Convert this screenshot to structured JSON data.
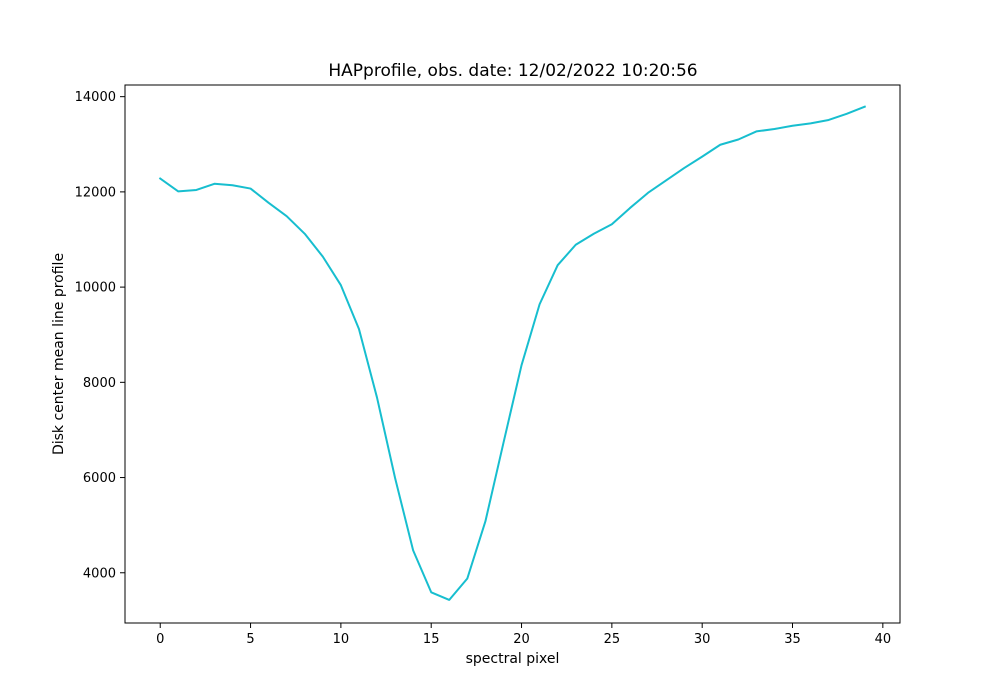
{
  "chart_data": {
    "type": "line",
    "title": "HAPprofile, obs. date: 12/02/2022 10:20:56",
    "xlabel": "spectral pixel",
    "ylabel": "Disk center mean line profile",
    "xlim": [
      -1.95,
      40.95
    ],
    "ylim": [
      2945,
      14245
    ],
    "x_ticks": [
      0,
      5,
      10,
      15,
      20,
      25,
      30,
      35,
      40
    ],
    "y_ticks": [
      4000,
      6000,
      8000,
      10000,
      12000,
      14000
    ],
    "grid": false,
    "legend": "none",
    "series": [
      {
        "color": "#17becf",
        "x": [
          0,
          1,
          2,
          3,
          4,
          5,
          6,
          7,
          8,
          9,
          10,
          11,
          12,
          13,
          14,
          15,
          16,
          17,
          18,
          19,
          20,
          21,
          22,
          23,
          24,
          25,
          26,
          27,
          28,
          29,
          30,
          31,
          32,
          33,
          34,
          35,
          36,
          37,
          38,
          39
        ],
        "y": [
          12280,
          12010,
          12040,
          12170,
          12140,
          12070,
          11770,
          11490,
          11120,
          10640,
          10040,
          9120,
          7680,
          5990,
          4470,
          3590,
          3430,
          3880,
          5080,
          6730,
          8360,
          9640,
          10460,
          10890,
          11120,
          11320,
          11660,
          11980,
          12240,
          12500,
          12740,
          12990,
          13100,
          13270,
          13320,
          13390,
          13440,
          13510,
          13640,
          13790
        ]
      }
    ]
  }
}
